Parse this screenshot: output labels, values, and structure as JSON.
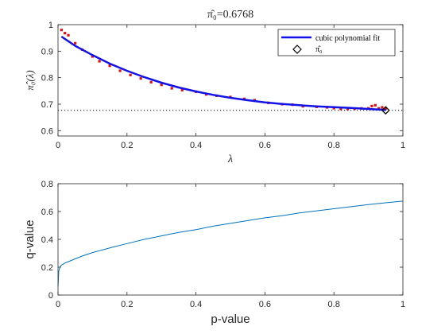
{
  "chart_data": [
    {
      "type": "scatter",
      "title": "π̂₀=0.6768",
      "xlabel": "λ",
      "ylabel": "π̂₀(λ)",
      "xlim": [
        0,
        1
      ],
      "ylim": [
        0.58,
        1.0
      ],
      "xticks": [
        0,
        0.2,
        0.4,
        0.6,
        0.8,
        1
      ],
      "xtick_labels": [
        "0",
        "0.2",
        "0.4",
        "0.6",
        "0.8",
        "1"
      ],
      "yticks": [
        0.6,
        0.7,
        0.8,
        0.9,
        1
      ],
      "ytick_labels": [
        "0.6",
        "0.7",
        "0.8",
        "0.9",
        "1"
      ],
      "grid": false,
      "legend_position": "top-right",
      "series": [
        {
          "name": "",
          "kind": "points",
          "color": "#e01010",
          "x": [
            0.01,
            0.02,
            0.03,
            0.05,
            0.07,
            0.1,
            0.12,
            0.15,
            0.18,
            0.21,
            0.24,
            0.27,
            0.3,
            0.33,
            0.36,
            0.4,
            0.43,
            0.46,
            0.5,
            0.54,
            0.57,
            0.61,
            0.65,
            0.68,
            0.71,
            0.75,
            0.78,
            0.8,
            0.82,
            0.84,
            0.86,
            0.88,
            0.9,
            0.91,
            0.92,
            0.93,
            0.94,
            0.95
          ],
          "y": [
            0.98,
            0.968,
            0.96,
            0.93,
            0.906,
            0.88,
            0.862,
            0.845,
            0.826,
            0.81,
            0.797,
            0.783,
            0.773,
            0.76,
            0.753,
            0.747,
            0.737,
            0.732,
            0.727,
            0.72,
            0.715,
            0.705,
            0.7,
            0.698,
            0.692,
            0.69,
            0.688,
            0.685,
            0.682,
            0.682,
            0.683,
            0.684,
            0.684,
            0.693,
            0.696,
            0.684,
            0.688,
            0.684
          ]
        },
        {
          "name": "cubic polynomial fit",
          "kind": "line",
          "color": "#1212e8",
          "x": [
            0.01,
            0.05,
            0.1,
            0.15,
            0.2,
            0.25,
            0.3,
            0.35,
            0.4,
            0.45,
            0.5,
            0.55,
            0.6,
            0.65,
            0.7,
            0.75,
            0.8,
            0.85,
            0.9,
            0.95
          ],
          "y": [
            0.955,
            0.92,
            0.885,
            0.853,
            0.826,
            0.802,
            0.781,
            0.763,
            0.748,
            0.735,
            0.724,
            0.715,
            0.707,
            0.701,
            0.696,
            0.692,
            0.689,
            0.686,
            0.682,
            0.678
          ]
        },
        {
          "name": "π̂₀",
          "kind": "marker",
          "color": "#000000",
          "x": [
            0.95
          ],
          "y": [
            0.6768
          ]
        }
      ],
      "reference_line": {
        "y": 0.6768,
        "style": "dotted",
        "color": "#000000"
      }
    },
    {
      "type": "line",
      "title": "",
      "xlabel": "p-value",
      "ylabel": "q-value",
      "xlim": [
        0,
        1
      ],
      "ylim": [
        0,
        0.8
      ],
      "xticks": [
        0,
        0.2,
        0.4,
        0.6,
        0.8,
        1
      ],
      "xtick_labels": [
        "0",
        "0.2",
        "0.4",
        "0.6",
        "0.8",
        "1"
      ],
      "yticks": [
        0,
        0.2,
        0.4,
        0.6,
        0.8
      ],
      "ytick_labels": [
        "0",
        "0.2",
        "0.4",
        "0.6",
        "0.8"
      ],
      "grid": false,
      "series": [
        {
          "name": "",
          "color": "#0072bd",
          "x": [
            0.0,
            0.002,
            0.005,
            0.01,
            0.02,
            0.03,
            0.05,
            0.07,
            0.1,
            0.13,
            0.16,
            0.2,
            0.25,
            0.3,
            0.35,
            0.4,
            0.45,
            0.5,
            0.55,
            0.6,
            0.65,
            0.7,
            0.75,
            0.8,
            0.85,
            0.9,
            0.95,
            1.0
          ],
          "y": [
            0.06,
            0.17,
            0.2,
            0.215,
            0.23,
            0.24,
            0.26,
            0.28,
            0.305,
            0.325,
            0.345,
            0.37,
            0.4,
            0.425,
            0.45,
            0.47,
            0.495,
            0.515,
            0.535,
            0.555,
            0.57,
            0.59,
            0.605,
            0.62,
            0.635,
            0.65,
            0.663,
            0.675
          ]
        }
      ]
    }
  ]
}
